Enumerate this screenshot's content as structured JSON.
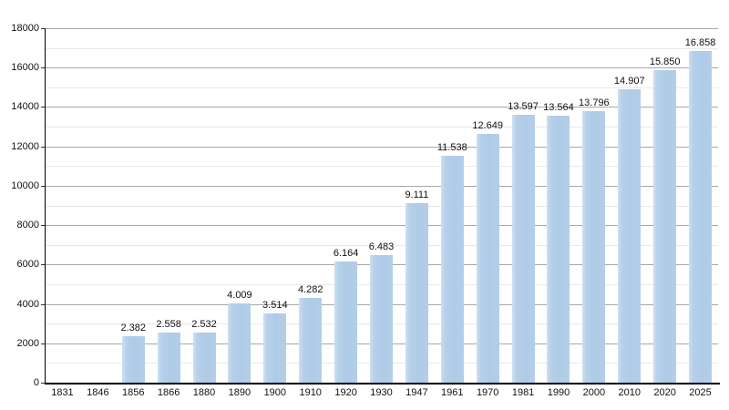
{
  "chart_data": {
    "type": "bar",
    "title": "",
    "xlabel": "",
    "ylabel": "",
    "categories": [
      "1831",
      "1846",
      "1856",
      "1866",
      "1880",
      "1890",
      "1900",
      "1910",
      "1920",
      "1930",
      "1947",
      "1961",
      "1970",
      "1981",
      "1990",
      "2000",
      "2010",
      "2020",
      "2025"
    ],
    "values": [
      null,
      null,
      2382,
      2558,
      2532,
      4009,
      3514,
      4282,
      6164,
      6483,
      9111,
      11538,
      12649,
      13597,
      13564,
      13796,
      14907,
      15850,
      16858
    ],
    "value_labels": [
      "",
      "",
      "2.382",
      "2.558",
      "2.532",
      "4.009",
      "3.514",
      "4.282",
      "6.164",
      "6.483",
      "9.111",
      "11.538",
      "12.649",
      "13.597",
      "13.564",
      "13.796",
      "14.907",
      "15.850",
      "16.858"
    ],
    "ylim": [
      0,
      18000
    ],
    "ytick_labels": [
      "0",
      "2000",
      "4000",
      "6000",
      "8000",
      "10000",
      "12000",
      "14000",
      "16000",
      "18000"
    ],
    "ytick_values": [
      0,
      2000,
      4000,
      6000,
      8000,
      10000,
      12000,
      14000,
      16000,
      18000
    ],
    "ytick_minor_values": [
      1000,
      3000,
      5000,
      7000,
      9000,
      11000,
      13000,
      15000,
      17000
    ],
    "grid": true,
    "legend": null,
    "colors": {
      "bar_fill": "#aecbe7",
      "bar_fill_light": "#cfdff1",
      "gridline_major": "#a8a8a8",
      "gridline_minor": "#e9e9e9",
      "axis": "#000000",
      "text": "#111111",
      "background": "#ffffff"
    }
  }
}
